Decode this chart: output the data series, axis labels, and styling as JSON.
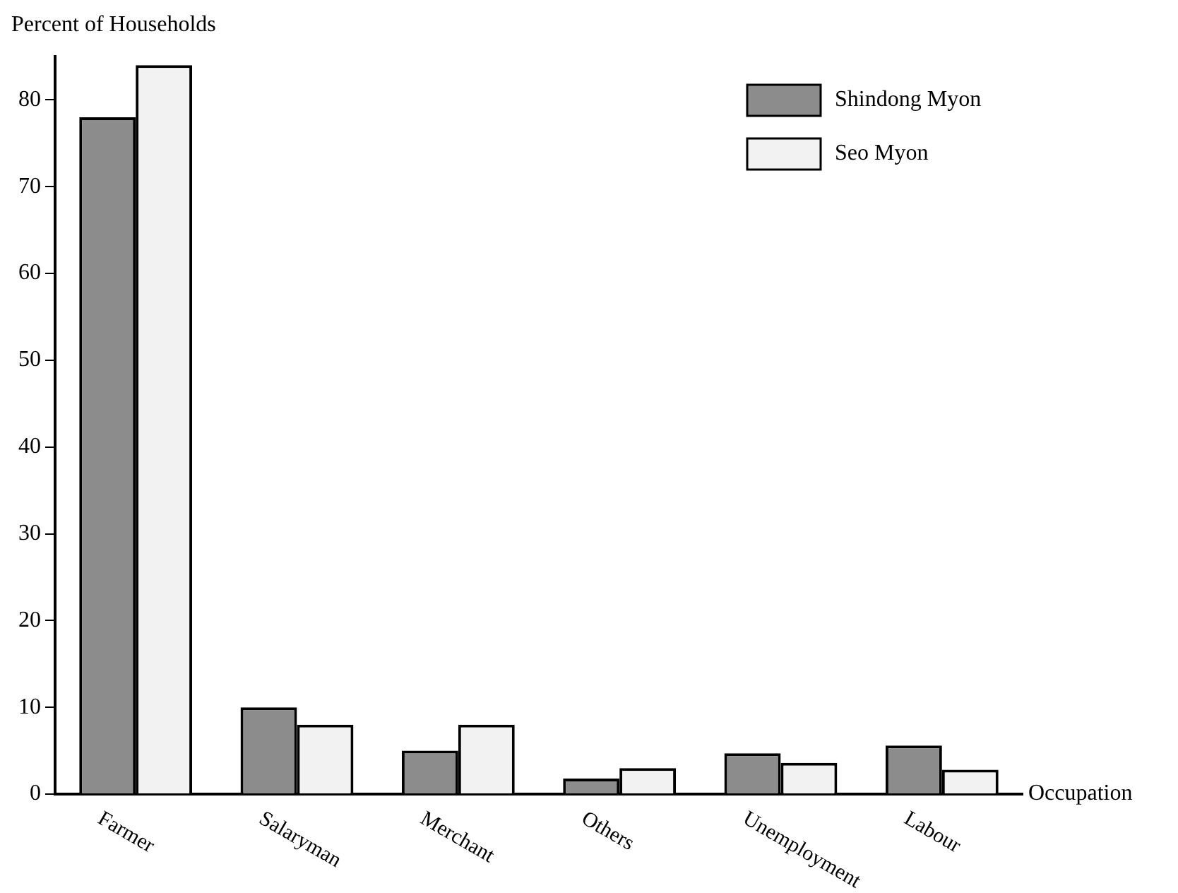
{
  "chart_data": {
    "type": "bar",
    "ylabel": "Percent of Households",
    "xlabel": "Occupation",
    "categories": [
      "Farmer",
      "Salaryman",
      "Merchant",
      "Others",
      "Unemployment",
      "Labour"
    ],
    "series": [
      {
        "name": "Shindong Myon",
        "color": "#8c8c8c",
        "values": [
          78,
          10,
          5,
          1.8,
          4.7,
          5.6
        ]
      },
      {
        "name": "Seo Myon",
        "color": "#f2f2f2",
        "values": [
          84,
          8,
          8,
          3,
          3.6,
          2.8
        ]
      }
    ],
    "ylim": [
      0,
      85
    ],
    "yticks": [
      0,
      10,
      20,
      30,
      40,
      50,
      60,
      70,
      80
    ],
    "grid": false,
    "legend": "top right"
  }
}
